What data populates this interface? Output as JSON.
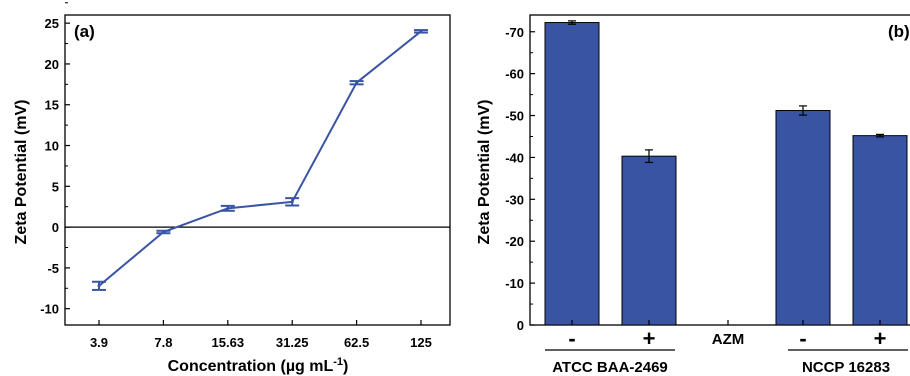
{
  "chart_data": [
    {
      "type": "line",
      "panel_label": "(a)",
      "xlabel_main": "Concentration (",
      "xlabel_unit": "µg mL",
      "xlabel_sup": "-1",
      "xlabel_close": ")",
      "ylabel": "Zeta Potential (mV)",
      "categories": [
        "3.9",
        "7.8",
        "15.63",
        "31.25",
        "62.5",
        "125"
      ],
      "values": [
        -7.2,
        -0.6,
        2.3,
        3.1,
        17.7,
        24.0
      ],
      "errors": [
        0.5,
        0.15,
        0.3,
        0.45,
        0.2,
        0.15
      ],
      "ylim": [
        -12,
        26
      ],
      "yticks": [
        "-10",
        "-5",
        "0",
        "5",
        "10",
        "15",
        "20",
        "25"
      ],
      "color": "#3a54a4"
    },
    {
      "type": "bar",
      "panel_label": "(b)",
      "ylabel": "Zeta Potential (mV)",
      "ylim": [
        0,
        74
      ],
      "yticks": [
        "0",
        "-10",
        "-20",
        "-30",
        "-40",
        "-50",
        "-60",
        "-70"
      ],
      "categories": [
        "-",
        "+",
        "AZM",
        "-",
        "+"
      ],
      "values": [
        72.2,
        40.3,
        null,
        51.2,
        45.2
      ],
      "errors": [
        0.4,
        1.5,
        null,
        1.1,
        0.3
      ],
      "group_labels": [
        "ATCC BAA-2469",
        "NCCP 16283"
      ],
      "color": "#3a54a4"
    }
  ]
}
